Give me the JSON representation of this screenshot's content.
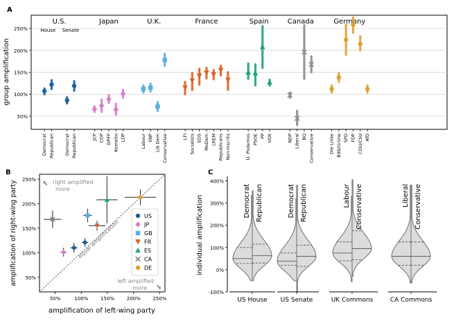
{
  "colors": {
    "US": "#1f5f9c",
    "JP": "#d47fc8",
    "GB": "#5aaee0",
    "FR": "#d8642a",
    "ES": "#1fa27a",
    "CA": "#8c8c8c",
    "DE": "#e0a030",
    "axis": "#000000",
    "grid": "#cfcfcf",
    "violin_fill": "#dcdcdc",
    "violin_edge": "#6e6e6e"
  },
  "chart_data": [
    {
      "type": "interval",
      "panel_label": "A",
      "ylabel": "group amplification",
      "ylim": [
        20,
        280
      ],
      "yticks": [
        50,
        100,
        150,
        200,
        250
      ],
      "ytick_labels": [
        "50%",
        "100%",
        "150%",
        "200%",
        "250%"
      ],
      "countries": [
        {
          "name": "U.S.",
          "code": "US",
          "subheaders": [
            "House",
            "Senate"
          ],
          "parties": [
            {
              "label": "Democrat",
              "value": 107,
              "low": 100,
              "high": 113,
              "marker": "circle"
            },
            {
              "label": "Republican",
              "value": 122,
              "low": 112,
              "high": 132,
              "marker": "circle"
            },
            {
              "label": "Democrat",
              "value": 86,
              "low": 79,
              "high": 93,
              "marker": "circle"
            },
            {
              "label": "Republican",
              "value": 119,
              "low": 108,
              "high": 130,
              "marker": "circle"
            }
          ]
        },
        {
          "name": "Japan",
          "code": "JP",
          "parties": [
            {
              "label": "JCP",
              "value": 66,
              "low": 60,
              "high": 72,
              "marker": "diamond"
            },
            {
              "label": "CDP",
              "value": 74,
              "low": 60,
              "high": 88,
              "marker": "diamond"
            },
            {
              "label": "DPFP",
              "value": 89,
              "low": 80,
              "high": 98,
              "marker": "diamond"
            },
            {
              "label": "Komeito",
              "value": 65,
              "low": 53,
              "high": 78,
              "marker": "diamond"
            },
            {
              "label": "LDP",
              "value": 101,
              "low": 92,
              "high": 110,
              "marker": "diamond"
            }
          ]
        },
        {
          "name": "U.K.",
          "code": "GB",
          "parties": [
            {
              "label": "Labour",
              "value": 112,
              "low": 104,
              "high": 120,
              "marker": "square"
            },
            {
              "label": "SNP",
              "value": 115,
              "low": 106,
              "high": 124,
              "marker": "square"
            },
            {
              "label": "Lib Dem",
              "value": 72,
              "low": 62,
              "high": 82,
              "marker": "square"
            },
            {
              "label": "Conservative",
              "value": 178,
              "low": 165,
              "high": 192,
              "marker": "square"
            }
          ]
        },
        {
          "name": "France",
          "code": "FR",
          "parties": [
            {
              "label": "LFI",
              "value": 115,
              "low": 100,
              "high": 128,
              "marker": "triangle-down"
            },
            {
              "label": "Socialists",
              "value": 131,
              "low": 110,
              "high": 148,
              "marker": "triangle-down"
            },
            {
              "label": "EDS",
              "value": 142,
              "low": 122,
              "high": 158,
              "marker": "triangle-down"
            },
            {
              "label": "MoDem",
              "value": 149,
              "low": 136,
              "high": 160,
              "marker": "triangle-down"
            },
            {
              "label": "LREM",
              "value": 145,
              "low": 134,
              "high": 155,
              "marker": "triangle-down"
            },
            {
              "label": "Republicans",
              "value": 155,
              "low": 143,
              "high": 165,
              "marker": "triangle-down"
            },
            {
              "label": "Non-Inscrits",
              "value": 133,
              "low": 110,
              "high": 150,
              "marker": "triangle-down"
            }
          ]
        },
        {
          "name": "Spain",
          "code": "ES",
          "parties": [
            {
              "label": "U. Podemos",
              "value": 150,
              "low": 135,
              "high": 170,
              "marker": "triangle-up"
            },
            {
              "label": "PSOE",
              "value": 148,
              "low": 120,
              "high": 168,
              "marker": "triangle-up"
            },
            {
              "label": "PP",
              "value": 208,
              "low": 160,
              "high": 255,
              "marker": "triangle-up"
            },
            {
              "label": "VOX",
              "value": 127,
              "low": 120,
              "high": 133,
              "marker": "triangle-up"
            }
          ]
        },
        {
          "name": "Canada",
          "code": "CA",
          "parties": [
            {
              "label": "NDP",
              "value": 98,
              "low": 92,
              "high": 104,
              "marker": "x"
            },
            {
              "label": "Liberal",
              "value": 45,
              "low": 30,
              "high": 62,
              "marker": "x"
            },
            {
              "label": "BQ",
              "value": 196,
              "low": 135,
              "high": 257,
              "marker": "x"
            },
            {
              "label": "Conservative",
              "value": 168,
              "low": 150,
              "high": 186,
              "marker": "x"
            }
          ]
        },
        {
          "name": "Germany",
          "code": "DE",
          "parties": [
            {
              "label": "Die Linke",
              "value": 112,
              "low": 104,
              "high": 120,
              "marker": "circle"
            },
            {
              "label": "B90/Grüne",
              "value": 138,
              "low": 128,
              "high": 148,
              "marker": "circle"
            },
            {
              "label": "SPD",
              "value": 224,
              "low": 190,
              "high": 258,
              "marker": "circle"
            },
            {
              "label": "FDP",
              "value": 258,
              "low": 240,
              "high": 275,
              "marker": "circle"
            },
            {
              "label": "CDU/CSU",
              "value": 215,
              "low": 200,
              "high": 232,
              "marker": "circle"
            },
            {
              "label": "AfD",
              "value": 112,
              "low": 104,
              "high": 120,
              "marker": "circle"
            }
          ]
        }
      ]
    },
    {
      "type": "scatter",
      "panel_label": "B",
      "xlabel": "amplification of left-wing party",
      "ylabel": "amplification of right-wing party",
      "xlim": [
        20,
        260
      ],
      "ylim": [
        20,
        260
      ],
      "ticks": [
        50,
        100,
        150,
        200,
        250
      ],
      "tick_labels": [
        "50%",
        "100%",
        "150%",
        "200%",
        "250%"
      ],
      "diagonal_label": "equal amplification",
      "annotation_top": [
        "right amplified",
        "more"
      ],
      "annotation_bottom": [
        "left amplified",
        "more"
      ],
      "legend": [
        "US",
        "JP",
        "GB",
        "FR",
        "ES",
        "CA",
        "DE"
      ],
      "points": [
        {
          "code": "US",
          "x": 86,
          "y": 110,
          "xerr": 7,
          "yerr": 10,
          "marker": "circle"
        },
        {
          "code": "US",
          "x": 107,
          "y": 121,
          "xerr": 6,
          "yerr": 9,
          "marker": "circle"
        },
        {
          "code": "JP",
          "x": 66,
          "y": 101,
          "xerr": 6,
          "yerr": 9,
          "marker": "diamond"
        },
        {
          "code": "GB",
          "x": 112,
          "y": 176,
          "xerr": 8,
          "yerr": 14,
          "marker": "square"
        },
        {
          "code": "FR",
          "x": 130,
          "y": 155,
          "xerr": 16,
          "yerr": 10,
          "marker": "triangle-down"
        },
        {
          "code": "ES",
          "x": 149,
          "y": 208,
          "xerr": 20,
          "yerr": 48,
          "marker": "triangle-up"
        },
        {
          "code": "CA",
          "x": 45,
          "y": 168,
          "xerr": 17,
          "yerr": 18,
          "marker": "x"
        },
        {
          "code": "DE",
          "x": 213,
          "y": 213,
          "xerr": 30,
          "yerr": 16,
          "marker": "circle"
        }
      ]
    },
    {
      "type": "violin",
      "panel_label": "C",
      "ylabel": "individual amplification",
      "ylim": [
        -100,
        420
      ],
      "yticks": [
        -100,
        0,
        100,
        200,
        300,
        400
      ],
      "ytick_labels": [
        "-100%",
        "0%",
        "100%",
        "200%",
        "300%",
        "400%"
      ],
      "groups": [
        {
          "name": "US House",
          "left": "Democrat",
          "right": "Republican",
          "left_q": [
            28,
            50,
            100
          ],
          "right_q": [
            30,
            63,
            115
          ],
          "left_range": [
            -50,
            335
          ],
          "right_range": [
            -50,
            355
          ]
        },
        {
          "name": "US Senate",
          "left": "Democrat",
          "right": "Republican",
          "left_q": [
            20,
            38,
            75
          ],
          "right_q": [
            15,
            60,
            110
          ],
          "left_range": [
            -50,
            320
          ],
          "right_range": [
            -100,
            380
          ]
        },
        {
          "name": "UK Commons",
          "left": "Labour",
          "right": "Conservative",
          "left_q": [
            40,
            75,
            125
          ],
          "right_q": [
            45,
            95,
            175
          ],
          "left_range": [
            -55,
            330
          ],
          "right_range": [
            -30,
            405
          ]
        },
        {
          "name": "CA Commons",
          "left": "Liberal",
          "right": "Conservative",
          "left_q": [
            20,
            60,
            125
          ],
          "right_q": [
            20,
            60,
            125
          ],
          "left_range": [
            -60,
            380
          ],
          "right_range": [
            -60,
            380
          ]
        }
      ]
    }
  ]
}
